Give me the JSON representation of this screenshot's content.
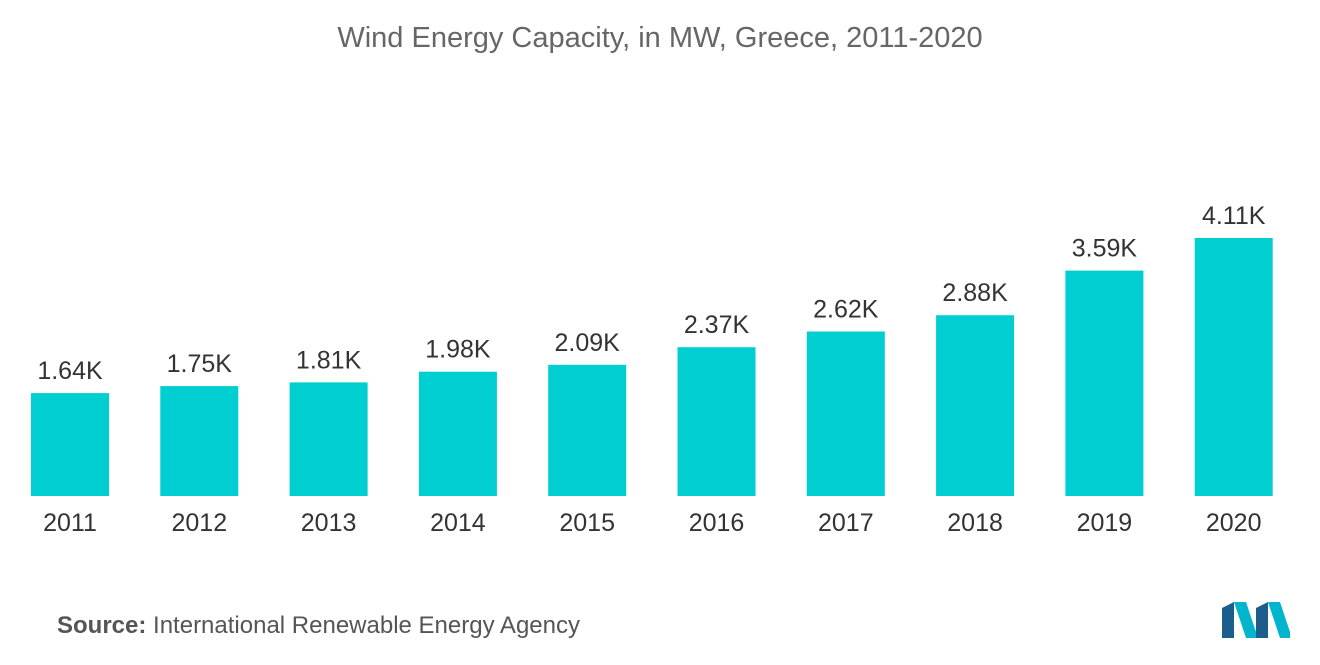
{
  "chart_data": {
    "type": "bar",
    "title": "Wind Energy Capacity, in MW, Greece, 2011-2020",
    "categories": [
      "2011",
      "2012",
      "2013",
      "2014",
      "2015",
      "2016",
      "2017",
      "2018",
      "2019",
      "2020"
    ],
    "values": [
      1640,
      1750,
      1810,
      1980,
      2090,
      2370,
      2620,
      2880,
      3590,
      4110
    ],
    "data_labels": [
      "1.64K",
      "1.75K",
      "1.81K",
      "1.98K",
      "2.09K",
      "2.37K",
      "2.62K",
      "2.88K",
      "3.59K",
      "4.11K"
    ],
    "xlabel": "",
    "ylabel": "",
    "ylim": [
      0,
      4110
    ],
    "grid": false,
    "legend": "none",
    "bar_color": "#00CED1"
  },
  "source": {
    "label": "Source:",
    "text": "International Renewable Energy Agency"
  },
  "logo": {
    "icon": "mordor-logo-icon",
    "colors": [
      "#1B5E8C",
      "#00B5CC"
    ]
  }
}
